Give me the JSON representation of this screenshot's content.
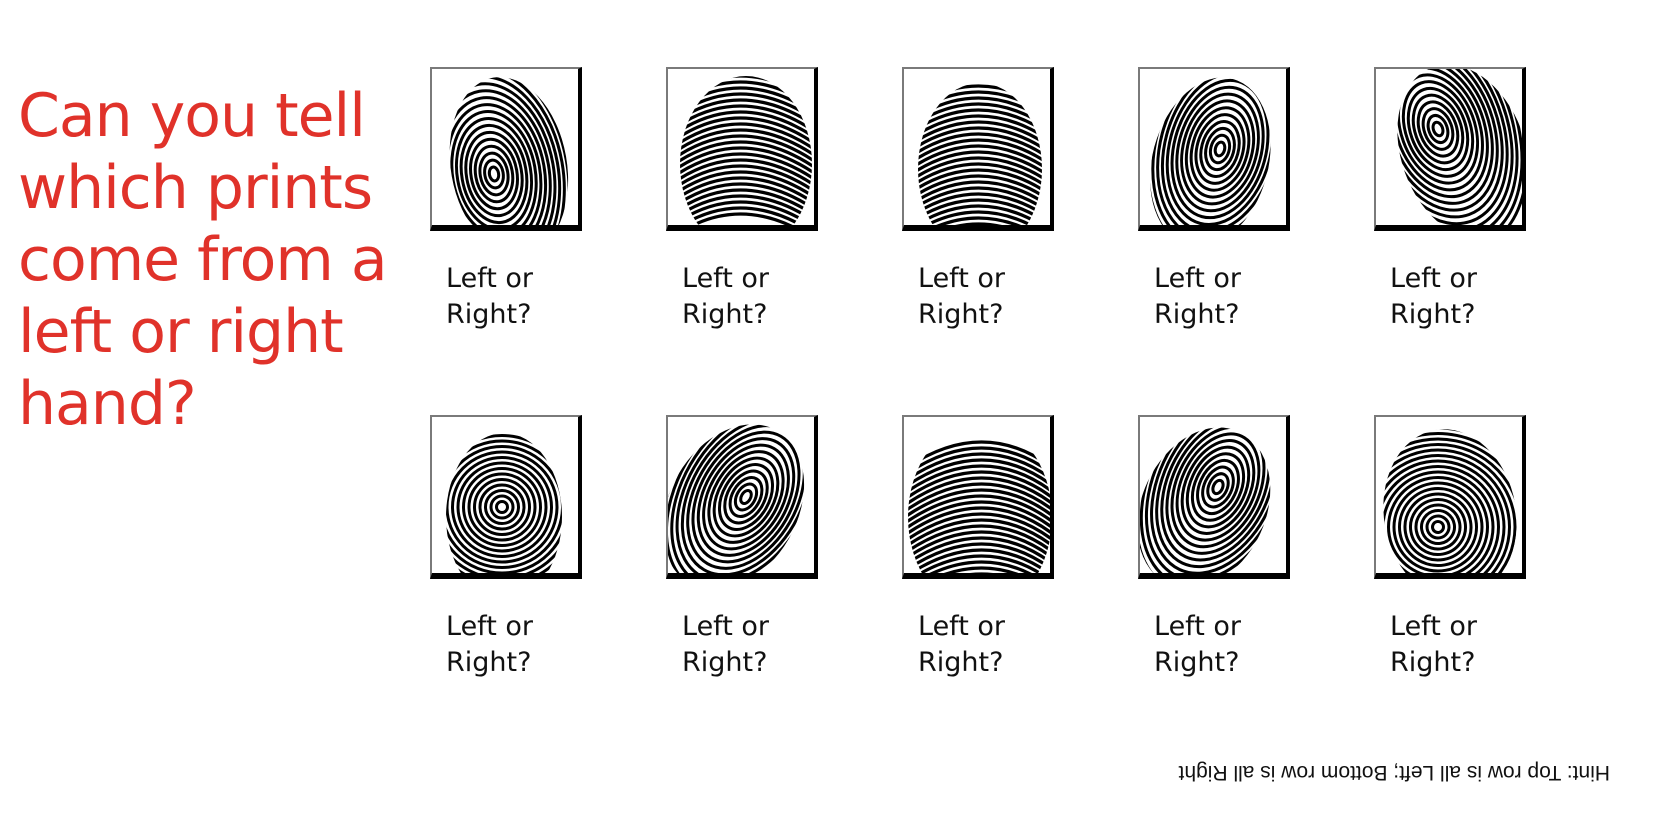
{
  "title_lines": [
    "Can you tell",
    "which prints",
    "come from a",
    "left or right",
    "hand?"
  ],
  "prints": [
    {
      "row": 1,
      "caption_line1": "Left or",
      "caption_line2": "Right?"
    },
    {
      "row": 1,
      "caption_line1": "Left or",
      "caption_line2": "Right?"
    },
    {
      "row": 1,
      "caption_line1": "Left or",
      "caption_line2": "Right?"
    },
    {
      "row": 1,
      "caption_line1": "Left or",
      "caption_line2": "Right?"
    },
    {
      "row": 1,
      "caption_line1": "Left or",
      "caption_line2": "Right?"
    },
    {
      "row": 2,
      "caption_line1": "Left or",
      "caption_line2": "Right?"
    },
    {
      "row": 2,
      "caption_line1": "Left or",
      "caption_line2": "Right?"
    },
    {
      "row": 2,
      "caption_line1": "Left or",
      "caption_line2": "Right?"
    },
    {
      "row": 2,
      "caption_line1": "Left or",
      "caption_line2": "Right?"
    },
    {
      "row": 2,
      "caption_line1": "Left or",
      "caption_line2": "Right?"
    }
  ],
  "hint": "Hint: Top row is all Left; Bottom row is all Right",
  "colors": {
    "title": "#e0322a",
    "text": "#111111",
    "frame": "#000000"
  }
}
